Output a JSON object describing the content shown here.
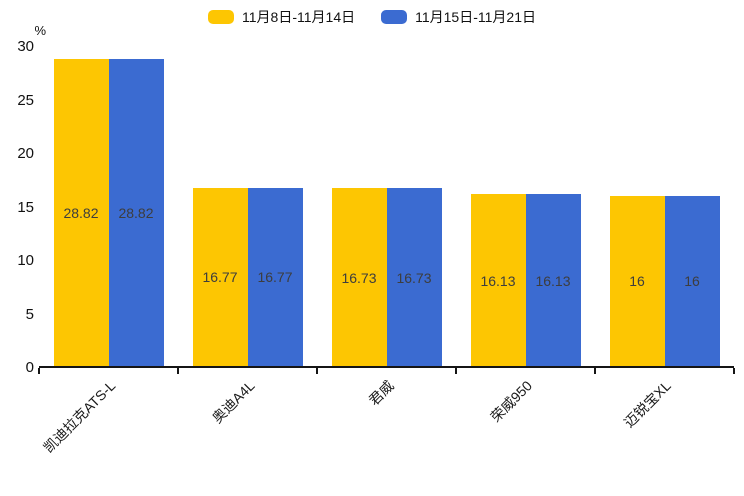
{
  "chart_data": {
    "type": "bar",
    "title": "",
    "unit_label": "%",
    "categories": [
      "凯迪拉克ATS-L",
      "奥迪A4L",
      "君威",
      "荣威950",
      "迈锐宝XL"
    ],
    "series": [
      {
        "name": "11月8日-11月14日",
        "color": "#FDC602",
        "values": [
          28.82,
          16.77,
          16.73,
          16.13,
          16
        ],
        "labels": [
          "28.82",
          "16.77",
          "16.73",
          "16.13",
          "16"
        ]
      },
      {
        "name": "11月15日-11月21日",
        "color": "#3B6BD1",
        "values": [
          28.82,
          16.77,
          16.73,
          16.13,
          16
        ],
        "labels": [
          "28.82",
          "16.77",
          "16.73",
          "16.13",
          "16"
        ]
      }
    ],
    "ylim": [
      0,
      30
    ],
    "yticks": [
      0,
      5,
      10,
      15,
      20,
      25,
      30
    ],
    "legend_position": "top-center",
    "grid": false,
    "axis_color": "#151515",
    "bar_label_color": "#3d3d3d",
    "tick_label_color": "#111111"
  }
}
